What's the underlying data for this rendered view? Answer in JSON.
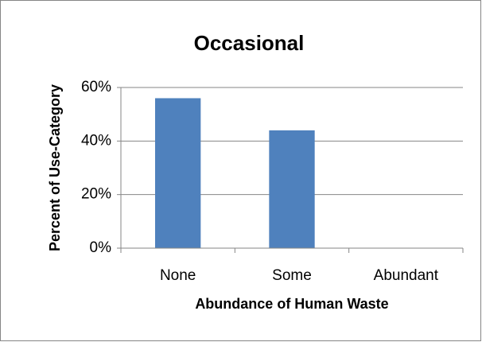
{
  "chart_data": {
    "type": "bar",
    "title": "Occasional",
    "x_label": "Abundance of Human Waste",
    "y_label": "Percent of Use-Category",
    "categories": [
      "None",
      "Some",
      "Abundant"
    ],
    "values": [
      56,
      44,
      0
    ],
    "color": "#4f81bd",
    "ylim": [
      0,
      60
    ],
    "yticks": [
      {
        "value": 0,
        "label": "0%"
      },
      {
        "value": 20,
        "label": "20%"
      },
      {
        "value": 40,
        "label": "40%"
      },
      {
        "value": 60,
        "label": "60%"
      }
    ],
    "grid": true
  }
}
